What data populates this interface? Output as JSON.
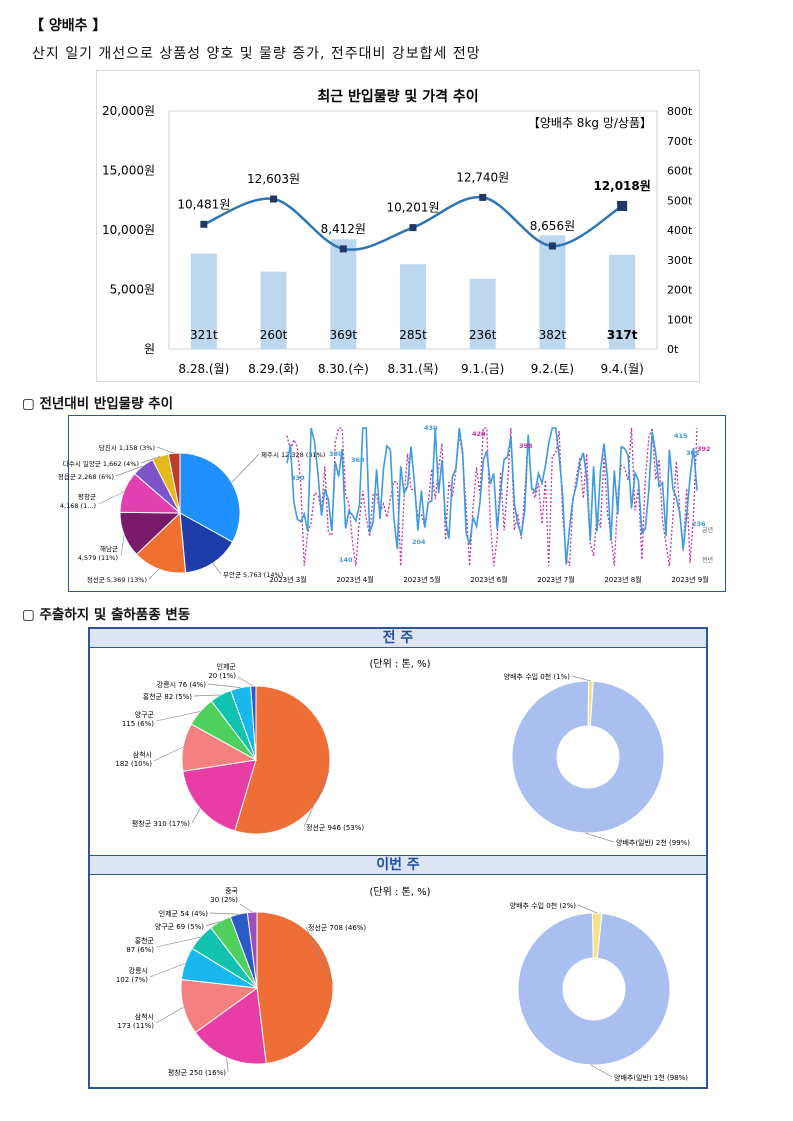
{
  "header": {
    "title": "【 양배추 】",
    "summary": "산지 일기 개선으로 상품성 양호 및 물량 증가, 전주대비 강보합세 전망"
  },
  "price_chart": {
    "title": "최근 반입물량 및 가격 추이",
    "unit_label": "【양배추 8kg 망/상품】",
    "left_ticks": [
      "20,000원",
      "15,000원",
      "10,000원",
      "5,000원",
      "원"
    ],
    "right_ticks": [
      "800t",
      "700t",
      "600t",
      "500t",
      "400t",
      "300t",
      "200t",
      "100t",
      "0t"
    ]
  },
  "section_yoy": {
    "label": "▢ 전년대비 반입물량 추이"
  },
  "yoy_pie": {
    "labels": [
      "당진시 1,158 (3%)",
      "다수시 일양군 1,662 (4%)",
      "정읍군 2,268 (6%)",
      "평창군 4,168 (1...)",
      "해남군 4,579 (11%)",
      "정선군 5,369 (13%)",
      "무안군 5,763 (14%)",
      "제주시 12,328 (31%)"
    ]
  },
  "yoy_line": {
    "x_labels": [
      "2023년 3월",
      "2023년 4월",
      "2023년 5월",
      "2023년 6월",
      "2023년 7월",
      "2023년 8월",
      "2023년 9월"
    ],
    "peak_labels": [
      "330",
      "380",
      "368",
      "430",
      "415",
      "382",
      "236",
      "420",
      "398",
      "392",
      "140",
      "204"
    ],
    "legend_this": "금년",
    "legend_last": "전년"
  },
  "section_shipping": {
    "label": "▢ 주출하지 및 출하품종 변동"
  },
  "last_week": {
    "banner": "전 주",
    "unit": "(단위 : 톤, %)",
    "pie_labels": [
      "인제군 20 (1%)",
      "강릉시 76 (4%)",
      "홍천군 82 (5%)",
      "양구군 115 (6%)",
      "삼척시 182 (10%)",
      "평창군 310 (17%)",
      "정선군 946 (53%)"
    ],
    "donut_labels": [
      "양배추 수입 0천 (1%)",
      "양배추(일반) 2천 (99%)"
    ]
  },
  "this_week": {
    "banner": "이번 주",
    "unit": "(단위 : 톤, %)",
    "pie_labels": [
      "중국 30 (2%)",
      "인제군 54 (4%)",
      "양구군 69 (5%)",
      "홍천군 87 (6%)",
      "강릉시 102 (7%)",
      "삼척시 173 (11%)",
      "평창군 250 (16%)",
      "정선군 708 (46%)"
    ],
    "donut_labels": [
      "양배추 수입 0천 (2%)",
      "양배추(일반) 1천 (98%)"
    ]
  },
  "colors": {
    "bar": "#bdd7ee",
    "line": "#2e75b6",
    "marker": "#1f3864",
    "blue_line": "#3d9be0",
    "pink_line": "#c9319c",
    "frame": "#2f5597",
    "donut_main": "#a9bff0",
    "donut_small": "#f5e38a",
    "banner_text": "#1f4ea1"
  },
  "chart_data": [
    {
      "type": "bar+line",
      "categories": [
        "8.28.(월)",
        "8.29.(화)",
        "8.30.(수)",
        "8.31.(목)",
        "9.1.(금)",
        "9.2.(토)",
        "9.4.(월)"
      ],
      "series": [
        {
          "name": "반입물량",
          "values": [
            321,
            260,
            369,
            285,
            236,
            382,
            317
          ],
          "labels": [
            "321t",
            "260t",
            "369t",
            "285t",
            "236t",
            "382t",
            "317t"
          ]
        },
        {
          "name": "가격",
          "values": [
            10481,
            12603,
            8412,
            10201,
            12740,
            8656,
            12018
          ],
          "labels": [
            "10,481원",
            "12,603원",
            "8,412원",
            "10,201원",
            "12,740원",
            "8,656원",
            "12,018원"
          ]
        }
      ],
      "title": "최근 반입물량 및 가격 추이",
      "ylim_left": [
        0,
        20000
      ],
      "ylim_right": [
        0,
        800
      ]
    },
    {
      "type": "pie",
      "labels": [
        "제주시",
        "무안군",
        "정선군",
        "해남군",
        "평창군",
        "정읍군",
        "다수시 일양군",
        "당진시"
      ],
      "values": [
        12328,
        5763,
        5369,
        4579,
        4168,
        2268,
        1662,
        1158
      ]
    },
    {
      "type": "pie",
      "labels": [
        "정선군",
        "평창군",
        "삼척시",
        "양구군",
        "홍천군",
        "강릉시",
        "인제군"
      ],
      "values": [
        946,
        310,
        182,
        115,
        82,
        76,
        20
      ]
    },
    {
      "type": "pie",
      "labels": [
        "양배추(일반)",
        "양배추 수입"
      ],
      "values": [
        99,
        1
      ]
    },
    {
      "type": "pie",
      "labels": [
        "정선군",
        "평창군",
        "삼척시",
        "강릉시",
        "홍천군",
        "양구군",
        "인제군",
        "중국"
      ],
      "values": [
        708,
        250,
        173,
        102,
        87,
        69,
        54,
        30
      ]
    },
    {
      "type": "pie",
      "labels": [
        "양배추(일반)",
        "양배추 수입"
      ],
      "values": [
        98,
        2
      ]
    }
  ]
}
